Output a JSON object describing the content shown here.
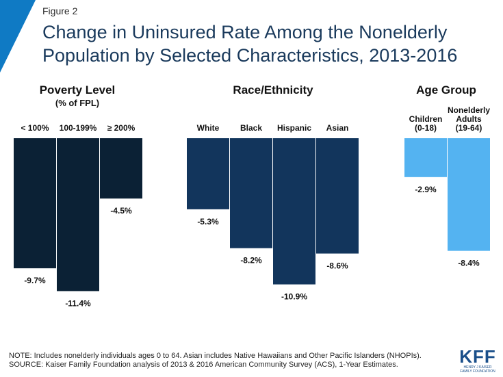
{
  "figure_label": "Figure 2",
  "title": "Change in Uninsured Rate Among the Nonelderly Population by Selected Characteristics, 2013-2016",
  "groups": {
    "poverty": {
      "title": "Poverty Level",
      "subtitle": "(% of FPL)"
    },
    "race": {
      "title": "Race/Ethnicity"
    },
    "age": {
      "title": "Age Group"
    }
  },
  "note_line1": "NOTE: Includes nonelderly individuals ages 0 to 64. Asian includes Native Hawaiians and Other Pacific Islanders (NHOPIs).",
  "note_line2": "SOURCE: Kaiser Family Foundation analysis of 2013 & 2016 American Community Survey (ACS), 1-Year Estimates.",
  "logo": {
    "main": "KFF",
    "sub1": "HENRY J KAISER",
    "sub2": "FAMILY FOUNDATION"
  },
  "colors": {
    "poverty": "#0b2135",
    "race": "#12355c",
    "age": "#54b3f1",
    "corner": "#0f7ac4",
    "title": "#1a3a5c"
  },
  "chart_data": {
    "type": "bar",
    "orientation": "vertical-downward",
    "categories": [
      "< 100%",
      "100-199%",
      "≥ 200%",
      "White",
      "Black",
      "Hispanic",
      "Asian",
      "Children (0-18)",
      "Nonelderly Adults (19-64)"
    ],
    "category_groups": [
      "Poverty Level",
      "Poverty Level",
      "Poverty Level",
      "Race/Ethnicity",
      "Race/Ethnicity",
      "Race/Ethnicity",
      "Race/Ethnicity",
      "Age Group",
      "Age Group"
    ],
    "values": [
      -9.7,
      -11.4,
      -4.5,
      -5.3,
      -8.2,
      -10.9,
      -8.6,
      -2.9,
      -8.4
    ],
    "value_labels": [
      "-9.7%",
      "-11.4%",
      "-4.5%",
      "-5.3%",
      "-8.2%",
      "-10.9%",
      "-8.6%",
      "-2.9%",
      "-8.4%"
    ],
    "ylim": [
      -12,
      0
    ],
    "grid": false
  }
}
